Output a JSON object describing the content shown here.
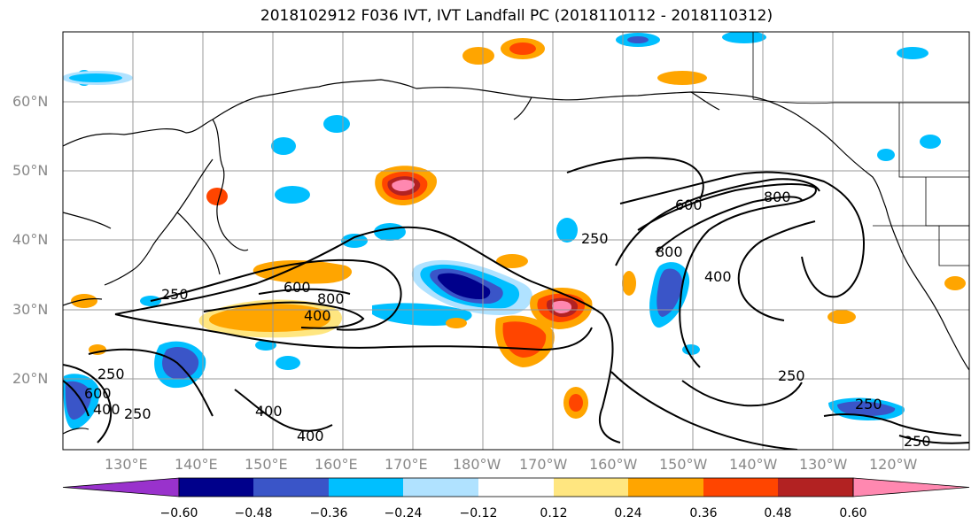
{
  "title": "2018102912 F036 IVT, IVT Landfall PC (2018110112 - 2018110312)",
  "lat_labels": [
    "60°N",
    "50°N",
    "40°N",
    "30°N",
    "20°N"
  ],
  "lon_labels": [
    "130°E",
    "140°E",
    "150°E",
    "160°E",
    "170°E",
    "180°W",
    "170°W",
    "160°W",
    "150°W",
    "140°W",
    "130°W",
    "120°W"
  ],
  "contour_levels": [
    "250",
    "400",
    "600",
    "800"
  ],
  "colorbar": {
    "ticks": [
      "−0.60",
      "−0.48",
      "−0.36",
      "−0.24",
      "−0.12",
      "0.12",
      "0.24",
      "0.36",
      "0.48",
      "0.60"
    ],
    "colors": [
      "#9932cc",
      "#00008b",
      "#3a55c8",
      "#00bfff",
      "#b0e2ff",
      "#ffffff",
      "#ffe680",
      "#ffa500",
      "#ff4500",
      "#b22222",
      "#ff88b0"
    ]
  }
}
